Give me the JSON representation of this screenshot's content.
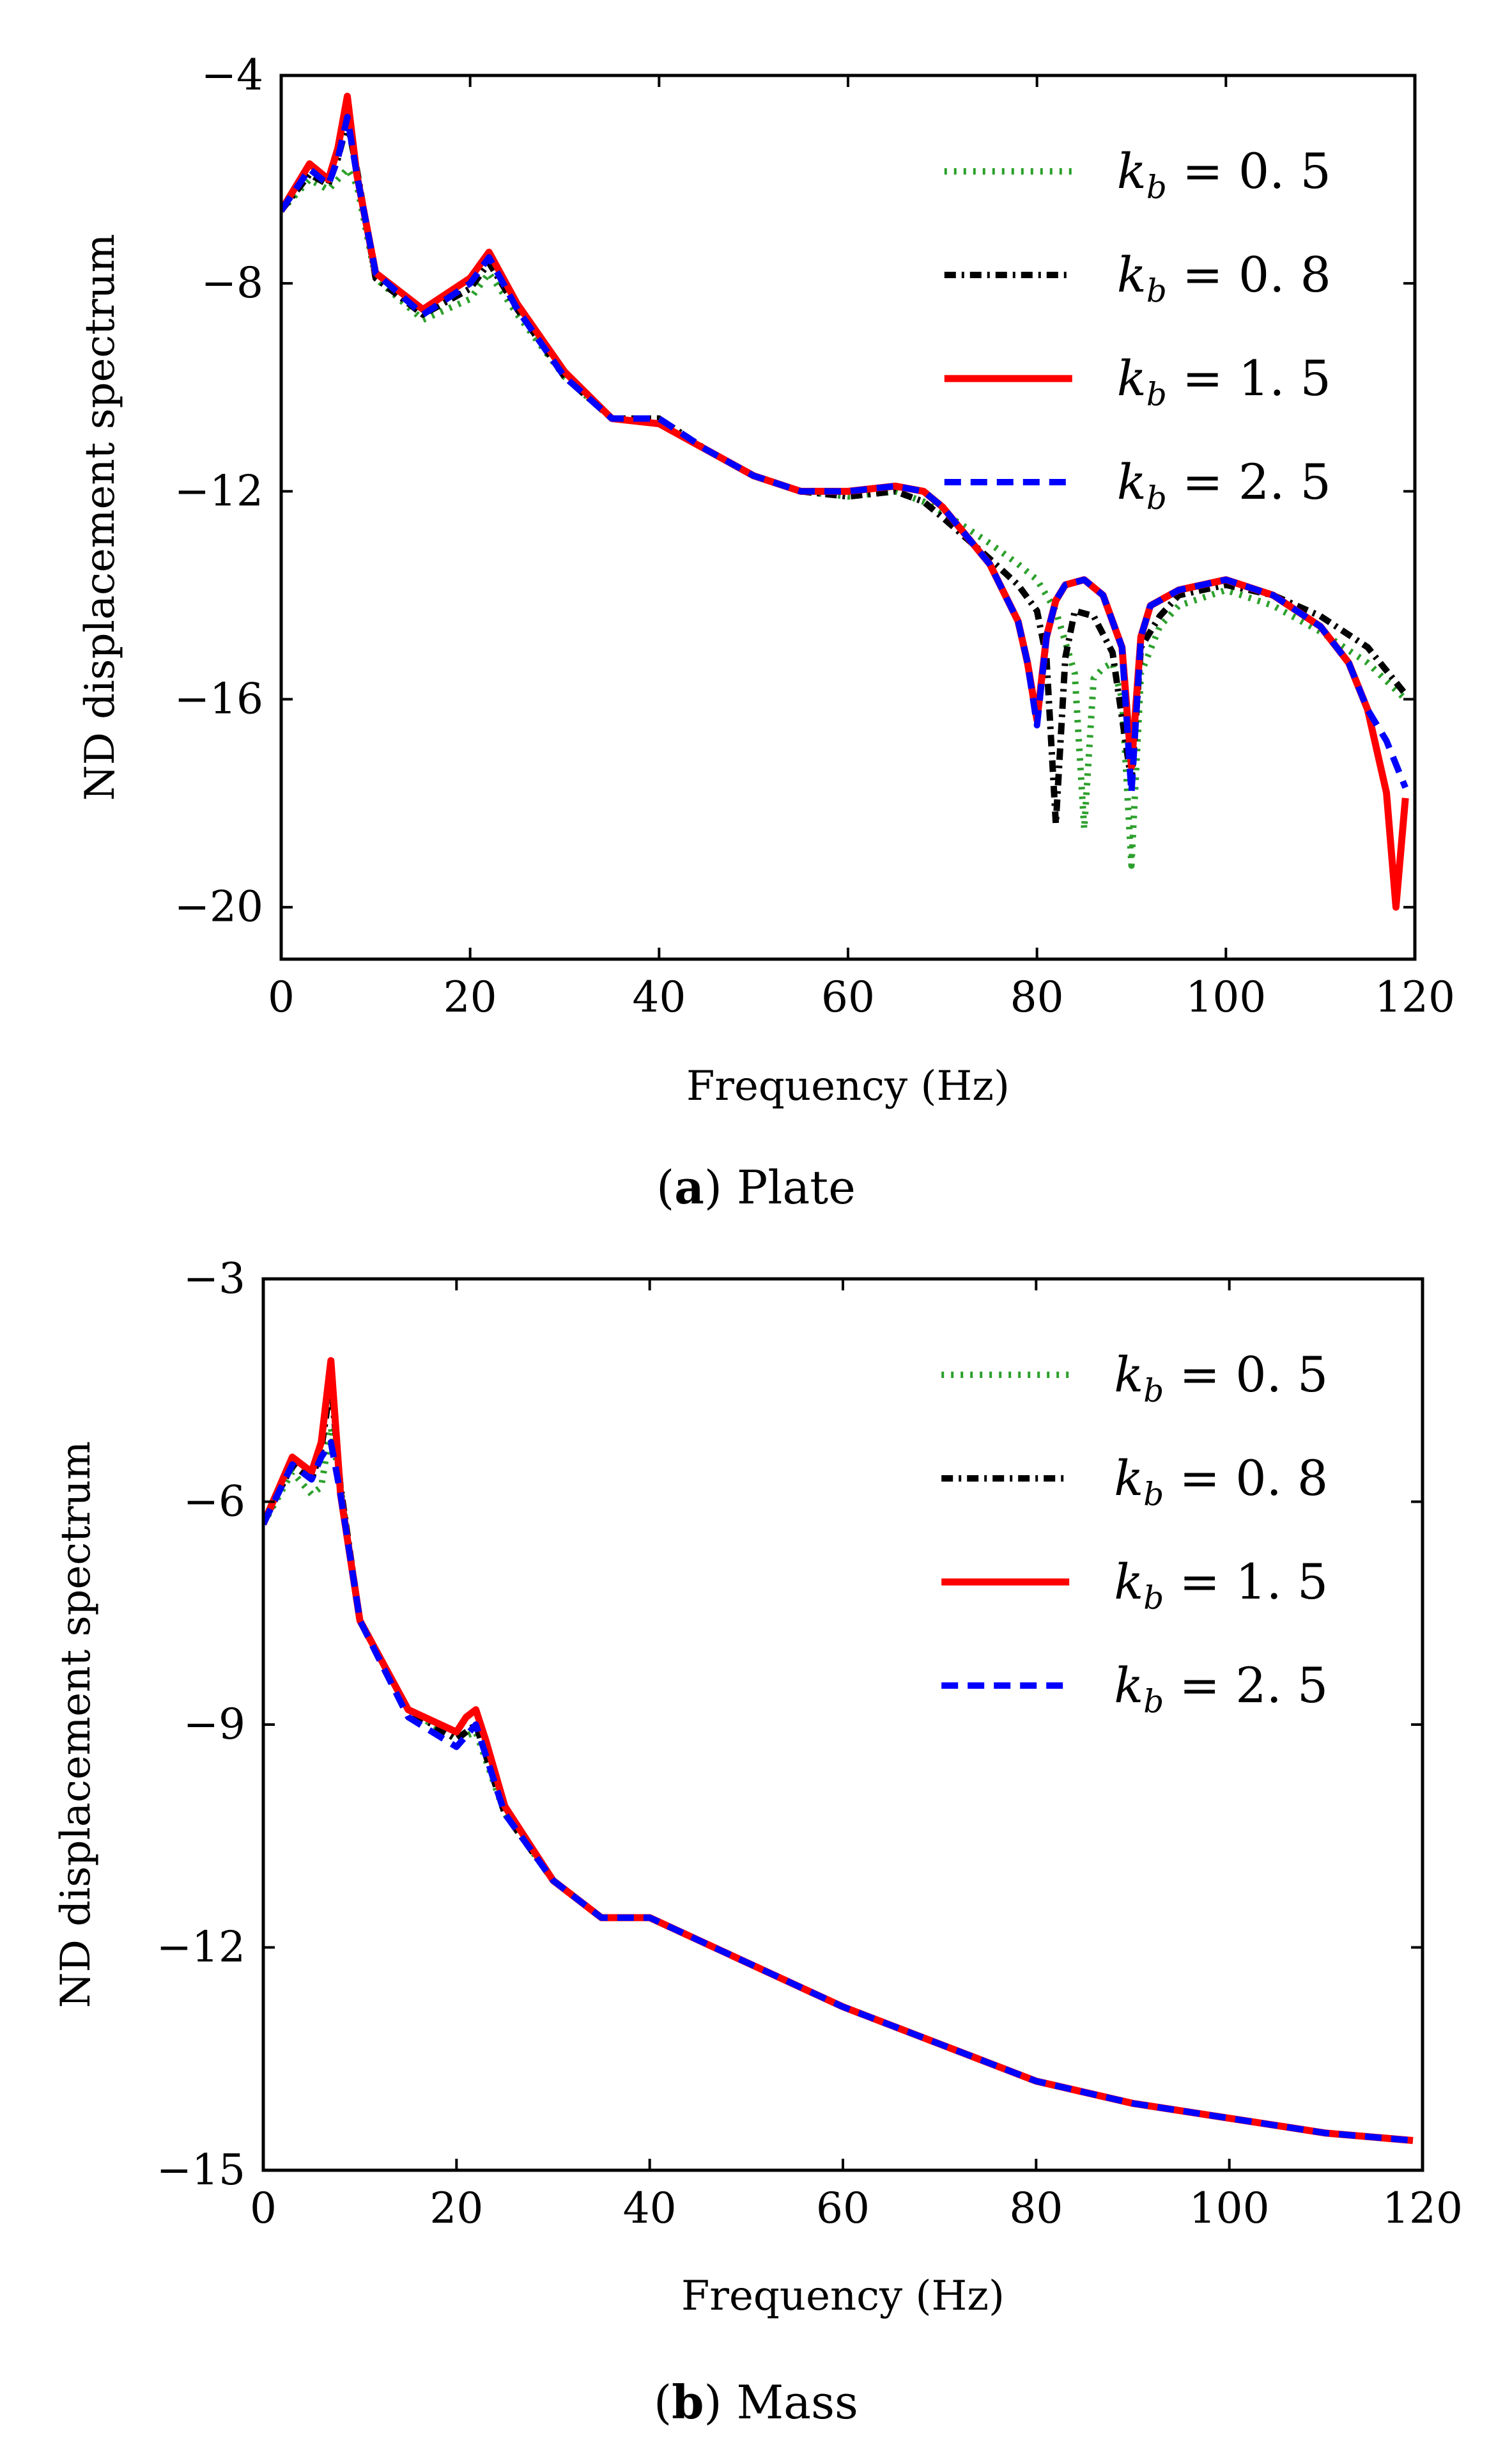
{
  "chart_data": [
    {
      "type": "line",
      "caption_letter": "a",
      "caption_text": "Plate",
      "xlabel": "Frequency (Hz)",
      "ylabel": "ND displacement spectrum",
      "xlim": [
        0,
        120
      ],
      "ylim": [
        -21,
        -4
      ],
      "xticks": [
        0,
        20,
        40,
        60,
        80,
        100,
        120
      ],
      "yticks": [
        -4,
        -8,
        -12,
        -16,
        -20
      ],
      "legend_position": "top-right",
      "grid": false,
      "series": [
        {
          "name": "k_b = 0.5",
          "label_var": "k",
          "label_sub": "b",
          "label_rest": " = 0. 5",
          "color": "#2ca02c",
          "dash": "4 11",
          "x": [
            0,
            3,
            5,
            6,
            7,
            8,
            10,
            15,
            20,
            22,
            25,
            30,
            35,
            40,
            45,
            50,
            55,
            60,
            65,
            68,
            70,
            75,
            78,
            80,
            82,
            84,
            85,
            86,
            87,
            88,
            89,
            90,
            91,
            93,
            95,
            100,
            105,
            110,
            115,
            119
          ],
          "y": [
            -6.6,
            -6.0,
            -6.2,
            -6.0,
            -5.8,
            -6.1,
            -7.9,
            -8.7,
            -8.3,
            -7.8,
            -8.6,
            -9.8,
            -10.6,
            -10.7,
            -11.2,
            -11.7,
            -12.0,
            -12.1,
            -12.0,
            -12.2,
            -12.4,
            -13.0,
            -13.4,
            -13.7,
            -14.3,
            -15.5,
            -18.5,
            -15.6,
            -15.4,
            -15.3,
            -16.0,
            -19.2,
            -15.5,
            -14.6,
            -14.2,
            -13.9,
            -14.2,
            -14.7,
            -15.3,
            -16.0
          ]
        },
        {
          "name": "k_b = 0.8",
          "label_var": "k",
          "label_sub": "b",
          "label_rest": " = 0. 8",
          "color": "#000000",
          "dash": "18 9 4 9",
          "x": [
            0,
            3,
            5,
            6,
            7,
            8,
            10,
            15,
            20,
            22,
            25,
            30,
            35,
            40,
            45,
            50,
            55,
            60,
            65,
            68,
            70,
            75,
            78,
            80,
            81,
            82,
            83,
            84,
            86,
            88,
            90,
            91,
            93,
            95,
            100,
            105,
            110,
            115,
            119
          ],
          "y": [
            -6.6,
            -5.9,
            -6.1,
            -5.6,
            -4.9,
            -5.8,
            -7.9,
            -8.6,
            -8.1,
            -7.6,
            -8.5,
            -9.8,
            -10.6,
            -10.6,
            -11.2,
            -11.7,
            -12.0,
            -12.1,
            -12.0,
            -12.2,
            -12.5,
            -13.3,
            -13.8,
            -14.3,
            -15.2,
            -18.4,
            -15.2,
            -14.3,
            -14.4,
            -15.1,
            -17.6,
            -15.0,
            -14.4,
            -14.0,
            -13.8,
            -14.0,
            -14.4,
            -15.0,
            -15.9
          ]
        },
        {
          "name": "k_b = 1.5",
          "label_var": "k",
          "label_sub": "b",
          "label_rest": " = 1. 5",
          "color": "#ff0000",
          "dash": "",
          "x": [
            0,
            3,
            5,
            6,
            7,
            8,
            10,
            15,
            20,
            22,
            25,
            30,
            35,
            40,
            45,
            50,
            55,
            60,
            65,
            68,
            70,
            75,
            78,
            79,
            80,
            81,
            82,
            83,
            85,
            87,
            89,
            90,
            91,
            92,
            95,
            100,
            105,
            110,
            113,
            115,
            117,
            118,
            119
          ],
          "y": [
            -6.6,
            -5.7,
            -6.0,
            -5.4,
            -4.4,
            -5.9,
            -7.8,
            -8.5,
            -7.9,
            -7.4,
            -8.4,
            -9.7,
            -10.6,
            -10.7,
            -11.2,
            -11.7,
            -12.0,
            -12.0,
            -11.9,
            -12.0,
            -12.3,
            -13.4,
            -14.5,
            -15.3,
            -16.4,
            -14.8,
            -14.1,
            -13.8,
            -13.7,
            -14.0,
            -15.0,
            -17.3,
            -14.8,
            -14.2,
            -13.9,
            -13.7,
            -14.0,
            -14.6,
            -15.3,
            -16.2,
            -17.8,
            -20.0,
            -17.9
          ]
        },
        {
          "name": "k_b = 2.5",
          "label_var": "k",
          "label_sub": "b",
          "label_rest": " = 2. 5",
          "color": "#0000ff",
          "dash": "26 15",
          "x": [
            0,
            3,
            5,
            6,
            7,
            8,
            10,
            15,
            20,
            22,
            25,
            30,
            35,
            40,
            45,
            50,
            55,
            60,
            65,
            68,
            70,
            75,
            78,
            79,
            80,
            81,
            82,
            83,
            85,
            87,
            89,
            90,
            91,
            92,
            95,
            100,
            105,
            110,
            113,
            115,
            117,
            119
          ],
          "y": [
            -6.6,
            -5.8,
            -6.1,
            -5.6,
            -4.8,
            -5.9,
            -7.8,
            -8.6,
            -8.0,
            -7.5,
            -8.5,
            -9.8,
            -10.6,
            -10.6,
            -11.2,
            -11.7,
            -12.0,
            -12.0,
            -11.9,
            -12.0,
            -12.3,
            -13.4,
            -14.5,
            -15.3,
            -16.5,
            -14.8,
            -14.1,
            -13.8,
            -13.7,
            -14.0,
            -15.0,
            -17.8,
            -14.8,
            -14.2,
            -13.9,
            -13.7,
            -14.0,
            -14.6,
            -15.3,
            -16.2,
            -16.8,
            -17.7
          ]
        }
      ]
    },
    {
      "type": "line",
      "caption_letter": "b",
      "caption_text": "Mass",
      "xlabel": "Frequency (Hz)",
      "ylabel": "ND displacement spectrum",
      "xlim": [
        0,
        120
      ],
      "ylim": [
        -15,
        -3
      ],
      "xticks": [
        0,
        20,
        40,
        60,
        80,
        100,
        120
      ],
      "yticks": [
        -3,
        -6,
        -9,
        -12,
        -15
      ],
      "legend_position": "top-right",
      "grid": false,
      "series": [
        {
          "name": "k_b = 0.5",
          "label_var": "k",
          "label_sub": "b",
          "label_rest": " = 0. 5",
          "color": "#2ca02c",
          "dash": "4 11",
          "x": [
            0,
            3,
            5,
            6,
            7,
            8,
            10,
            15,
            20,
            22,
            25,
            30,
            35,
            40,
            45,
            50,
            60,
            70,
            80,
            90,
            100,
            110,
            119
          ],
          "y": [
            -6.3,
            -5.6,
            -5.9,
            -5.8,
            -5.0,
            -5.8,
            -7.6,
            -8.8,
            -9.2,
            -9.1,
            -10.2,
            -11.1,
            -11.6,
            -11.6,
            -11.9,
            -12.2,
            -12.8,
            -13.3,
            -13.8,
            -14.1,
            -14.3,
            -14.5,
            -14.6
          ]
        },
        {
          "name": "k_b = 0.8",
          "label_var": "k",
          "label_sub": "b",
          "label_rest": " = 0. 8",
          "color": "#000000",
          "dash": "18 9 4 9",
          "x": [
            0,
            3,
            5,
            6,
            7,
            8,
            10,
            15,
            20,
            22,
            25,
            30,
            35,
            40,
            45,
            50,
            60,
            70,
            80,
            90,
            100,
            110,
            119
          ],
          "y": [
            -6.3,
            -5.5,
            -5.7,
            -5.3,
            -4.4,
            -5.8,
            -7.6,
            -8.8,
            -9.2,
            -9.0,
            -10.2,
            -11.1,
            -11.6,
            -11.6,
            -11.9,
            -12.2,
            -12.8,
            -13.3,
            -13.8,
            -14.1,
            -14.3,
            -14.5,
            -14.6
          ]
        },
        {
          "name": "k_b = 1.5",
          "label_var": "k",
          "label_sub": "b",
          "label_rest": " = 1. 5",
          "color": "#ff0000",
          "dash": "",
          "x": [
            0,
            3,
            5,
            6,
            7,
            8,
            10,
            15,
            20,
            21,
            22,
            23,
            25,
            30,
            35,
            40,
            45,
            50,
            60,
            70,
            80,
            90,
            100,
            110,
            119
          ],
          "y": [
            -6.3,
            -5.4,
            -5.6,
            -5.2,
            -4.1,
            -5.9,
            -7.6,
            -8.8,
            -9.1,
            -8.9,
            -8.8,
            -9.2,
            -10.1,
            -11.1,
            -11.6,
            -11.6,
            -11.9,
            -12.2,
            -12.8,
            -13.3,
            -13.8,
            -14.1,
            -14.3,
            -14.5,
            -14.6
          ]
        },
        {
          "name": "k_b = 2.5",
          "label_var": "k",
          "label_sub": "b",
          "label_rest": " = 2. 5",
          "color": "#0000ff",
          "dash": "26 15",
          "x": [
            0,
            3,
            5,
            6,
            7,
            8,
            10,
            15,
            20,
            22,
            25,
            30,
            35,
            40,
            45,
            50,
            60,
            70,
            80,
            90,
            100,
            110,
            119
          ],
          "y": [
            -6.3,
            -5.5,
            -5.7,
            -5.4,
            -5.2,
            -5.9,
            -7.6,
            -8.9,
            -9.3,
            -9.0,
            -10.2,
            -11.1,
            -11.6,
            -11.6,
            -11.9,
            -12.2,
            -12.8,
            -13.3,
            -13.8,
            -14.1,
            -14.3,
            -14.5,
            -14.6
          ]
        }
      ]
    }
  ]
}
